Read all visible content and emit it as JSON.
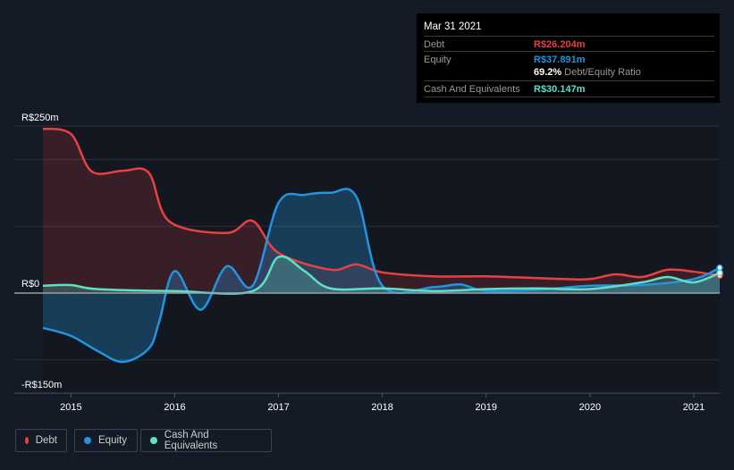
{
  "tooltip": {
    "date": "Mar 31 2021",
    "debt_label": "Debt",
    "debt_value": "R$26.204m",
    "equity_label": "Equity",
    "equity_value": "R$37.891m",
    "ratio_value": "69.2%",
    "ratio_label": "Debt/Equity Ratio",
    "cash_label": "Cash And Equivalents",
    "cash_value": "R$30.147m"
  },
  "legend": [
    {
      "label": "Debt",
      "color": "#e84142"
    },
    {
      "label": "Equity",
      "color": "#2394df"
    },
    {
      "label": "Cash And Equivalents",
      "color": "#5ee0c5"
    }
  ],
  "chart_data": {
    "type": "area",
    "ylabels": [
      "R$250m",
      "R$0",
      "-R$150m"
    ],
    "ylim": [
      -150,
      250
    ],
    "xlim": [
      2014.73,
      2021.25
    ],
    "xticks": [
      "2015",
      "2016",
      "2017",
      "2018",
      "2019",
      "2020",
      "2021"
    ],
    "series": [
      {
        "name": "Debt",
        "color": "#e84142",
        "points": [
          [
            2014.73,
            246
          ],
          [
            2015,
            238
          ],
          [
            2015.2,
            182
          ],
          [
            2015.5,
            183
          ],
          [
            2015.75,
            180
          ],
          [
            2015.95,
            107
          ],
          [
            2016.5,
            90
          ],
          [
            2016.75,
            108
          ],
          [
            2017,
            60
          ],
          [
            2017.5,
            35
          ],
          [
            2017.75,
            43
          ],
          [
            2018,
            31
          ],
          [
            2018.5,
            25
          ],
          [
            2019,
            25
          ],
          [
            2019.75,
            21
          ],
          [
            2020,
            21
          ],
          [
            2020.25,
            28
          ],
          [
            2020.5,
            24
          ],
          [
            2020.75,
            35
          ],
          [
            2021,
            32
          ],
          [
            2021.25,
            26.2
          ]
        ]
      },
      {
        "name": "Equity",
        "color": "#2394df",
        "points": [
          [
            2014.73,
            -52
          ],
          [
            2015,
            -64
          ],
          [
            2015.25,
            -86
          ],
          [
            2015.5,
            -103
          ],
          [
            2015.75,
            -83
          ],
          [
            2015.85,
            -43
          ],
          [
            2016,
            33
          ],
          [
            2016.25,
            -25
          ],
          [
            2016.5,
            40
          ],
          [
            2016.75,
            11
          ],
          [
            2017,
            135
          ],
          [
            2017.25,
            147
          ],
          [
            2017.5,
            150
          ],
          [
            2017.75,
            144
          ],
          [
            2018,
            11
          ],
          [
            2018.5,
            9
          ],
          [
            2018.75,
            13
          ],
          [
            2019,
            3
          ],
          [
            2019.5,
            5
          ],
          [
            2020,
            11
          ],
          [
            2020.5,
            12
          ],
          [
            2021,
            21
          ],
          [
            2021.25,
            37.9
          ]
        ]
      },
      {
        "name": "Cash And Equivalents",
        "color": "#5ee0c5",
        "points": [
          [
            2014.73,
            11
          ],
          [
            2015,
            12
          ],
          [
            2015.25,
            6
          ],
          [
            2016,
            3
          ],
          [
            2016.75,
            3
          ],
          [
            2017,
            54
          ],
          [
            2017.25,
            33
          ],
          [
            2017.5,
            7
          ],
          [
            2018,
            7
          ],
          [
            2018.5,
            3
          ],
          [
            2019,
            6
          ],
          [
            2019.5,
            7
          ],
          [
            2020,
            6
          ],
          [
            2020.5,
            16
          ],
          [
            2020.75,
            24
          ],
          [
            2021,
            16
          ],
          [
            2021.25,
            30.1
          ]
        ]
      }
    ]
  }
}
